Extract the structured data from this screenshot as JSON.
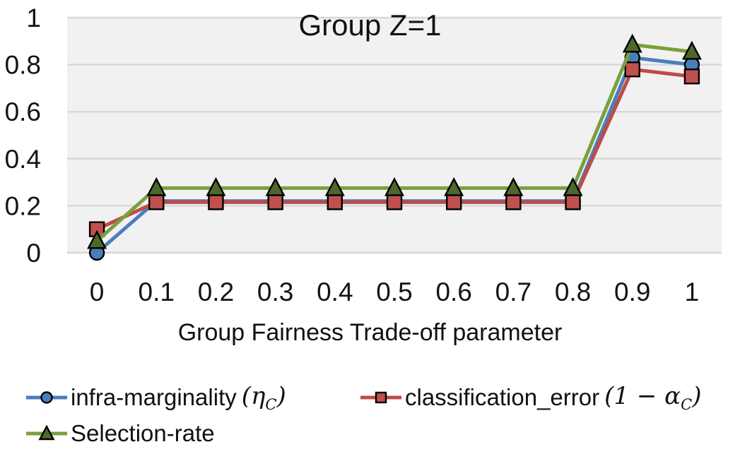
{
  "chart_data": {
    "type": "line",
    "title": "Group Z=1",
    "xlabel": "Group Fairness Trade-off parameter",
    "ylabel": "",
    "x": [
      0,
      0.1,
      0.2,
      0.3,
      0.4,
      0.5,
      0.6,
      0.7,
      0.8,
      0.9,
      1
    ],
    "x_tick_labels": [
      "0",
      "0.1",
      "0.2",
      "0.3",
      "0.4",
      "0.5",
      "0.6",
      "0.7",
      "0.8",
      "0.9",
      "1"
    ],
    "y_tick_labels": [
      "0",
      "0.2",
      "0.4",
      "0.6",
      "0.8",
      "1"
    ],
    "ylim": [
      0,
      1
    ],
    "grid": "horizontal",
    "legend_position": "bottom-left",
    "plot_bg_color": "#f1f1f1",
    "grid_color": "#d8d8d8",
    "series": [
      {
        "name": "infra-marginality (η_C)",
        "marker": "circle",
        "line_color": "#4a7ebb",
        "marker_fill": "#4a7ebb",
        "values": [
          0,
          0.22,
          0.22,
          0.22,
          0.22,
          0.22,
          0.22,
          0.22,
          0.22,
          0.83,
          0.8
        ]
      },
      {
        "name": "classification_error (1 − α_C)",
        "marker": "square",
        "line_color": "#be4b48",
        "marker_fill": "#c0504d",
        "values": [
          0.1,
          0.215,
          0.215,
          0.215,
          0.215,
          0.215,
          0.215,
          0.215,
          0.215,
          0.78,
          0.75
        ]
      },
      {
        "name": "Selection-rate",
        "marker": "triangle",
        "line_color": "#79a03e",
        "marker_fill": "#4c682c",
        "values": [
          0.05,
          0.275,
          0.275,
          0.275,
          0.275,
          0.275,
          0.275,
          0.275,
          0.275,
          0.885,
          0.855
        ]
      }
    ]
  },
  "legend": {
    "items": [
      {
        "label": "infra-marginality",
        "math_open": "(η",
        "math_sub": "C",
        "math_close": ")"
      },
      {
        "label": "classification_error",
        "math_open": "(1 − α",
        "math_sub": "C",
        "math_close": ")"
      },
      {
        "label": "Selection-rate",
        "math_open": "",
        "math_sub": "",
        "math_close": ""
      }
    ]
  }
}
